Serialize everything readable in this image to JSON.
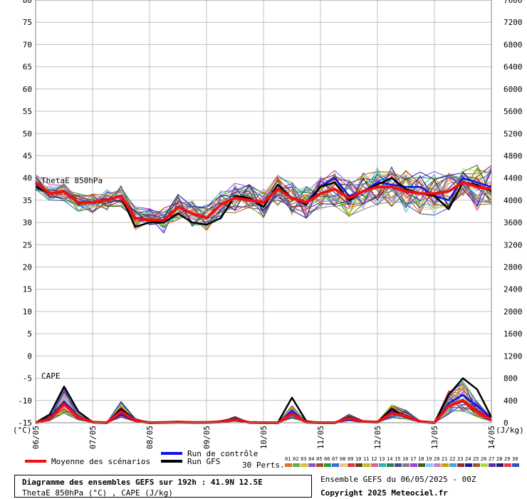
{
  "header": {
    "unit_left": "(°C)",
    "unit_right": "(J/kg)"
  },
  "panels": {
    "thetae_label": "ThetaE 850hPa",
    "cape_label": "CAPE"
  },
  "legend": {
    "mean_label": "Moyenne des scénarios",
    "control_label": "Run de contrôle",
    "gfs_label": "Run GFS",
    "perts_label": "30 Perts.",
    "pert_numbers": [
      "01",
      "02",
      "03",
      "04",
      "05",
      "06",
      "07",
      "08",
      "09",
      "10",
      "11",
      "12",
      "13",
      "14",
      "15",
      "16",
      "17",
      "18",
      "19",
      "20",
      "21",
      "22",
      "23",
      "24",
      "25",
      "26",
      "27",
      "28",
      "29",
      "30"
    ],
    "pert_colors": [
      "#e0702a",
      "#60b040",
      "#d8c030",
      "#8a50c8",
      "#a04a20",
      "#2a9a40",
      "#3a6ae0",
      "#e8c890",
      "#e03838",
      "#5a4020",
      "#c0c020",
      "#e06090",
      "#28b4b4",
      "#208848",
      "#4a4a8a",
      "#808080",
      "#a040e0",
      "#406020",
      "#80c8ff",
      "#d080c0",
      "#c8a000",
      "#4aa0e0",
      "#9a2828",
      "#1a1a9a",
      "#9a5a2a",
      "#a0e040",
      "#6030a0",
      "#20207a",
      "#e04040",
      "#3050c0"
    ]
  },
  "info": {
    "title": "Diagramme des ensembles GEFS sur 192h : 41.9N 12.5E",
    "subtitle": "ThetaE 850hPa (°C) , CAPE (J/kg)",
    "run": "Ensemble GEFS du 06/05/2025 - 00Z",
    "copyright": "Copyright 2025 Meteociel.fr"
  },
  "chart_data": {
    "type": "line",
    "xlabel": "",
    "ylabel": "(°C)",
    "y2label": "(J/kg)",
    "x_ticks": [
      "06/05",
      "07/05",
      "08/05",
      "09/05",
      "10/05",
      "11/05",
      "12/05",
      "13/05",
      "14/05"
    ],
    "x_range_hours": [
      0,
      192
    ],
    "y_left": {
      "ticks": [
        80,
        75,
        70,
        65,
        60,
        55,
        50,
        45,
        40,
        35,
        30,
        25,
        20,
        15,
        10,
        5,
        0,
        -5,
        -10,
        -15
      ],
      "range": [
        -15,
        80
      ]
    },
    "y_right": {
      "ticks": [
        7600,
        7200,
        6800,
        6400,
        6000,
        5600,
        5200,
        4800,
        4400,
        4000,
        3600,
        3200,
        2800,
        2400,
        2000,
        1600,
        1200,
        800,
        400,
        0
      ],
      "range": [
        0,
        7600
      ]
    },
    "grid": true,
    "thetae_850hPa_degC": {
      "x_hours": [
        0,
        6,
        12,
        18,
        24,
        30,
        36,
        42,
        48,
        54,
        60,
        66,
        72,
        78,
        84,
        90,
        96,
        102,
        108,
        114,
        120,
        126,
        132,
        138,
        144,
        150,
        156,
        162,
        168,
        174,
        180,
        186,
        192
      ],
      "mean": [
        39,
        36.5,
        37,
        34.5,
        34.5,
        35,
        36,
        31,
        30.5,
        30.5,
        33.5,
        32,
        31,
        34,
        35.5,
        35,
        34.5,
        37.5,
        35.5,
        34.5,
        36.5,
        37.5,
        35.5,
        37,
        38,
        38,
        37,
        36.5,
        36.5,
        37,
        39,
        38,
        37.5
      ],
      "control": [
        38.5,
        36.5,
        37,
        34.5,
        34.5,
        35,
        36,
        31,
        30.5,
        30.5,
        33.5,
        32,
        31,
        34,
        35.5,
        35,
        34.5,
        37.5,
        35.5,
        34.5,
        38,
        40,
        36,
        37,
        39,
        38.5,
        38,
        38,
        36,
        35,
        40,
        39,
        38
      ],
      "gfs": [
        38,
        36.5,
        37,
        34.5,
        34.5,
        35,
        36,
        29,
        30,
        30,
        32,
        30,
        29.5,
        31,
        36,
        35.5,
        33.5,
        38.5,
        35.5,
        34,
        38,
        39,
        35,
        37,
        38.5,
        40,
        37.5,
        36.5,
        36,
        33,
        39,
        38.5,
        37
      ]
    },
    "cape_J_per_kg": {
      "x_hours": [
        0,
        6,
        12,
        18,
        24,
        30,
        36,
        42,
        48,
        54,
        60,
        66,
        72,
        78,
        84,
        90,
        96,
        102,
        108,
        114,
        120,
        126,
        132,
        138,
        144,
        150,
        156,
        162,
        168,
        174,
        180,
        186,
        192
      ],
      "mean": [
        0,
        70,
        330,
        100,
        10,
        0,
        200,
        40,
        0,
        5,
        10,
        5,
        5,
        15,
        60,
        5,
        0,
        0,
        160,
        10,
        0,
        0,
        80,
        20,
        10,
        170,
        120,
        20,
        0,
        300,
        400,
        200,
        50
      ],
      "control": [
        0,
        100,
        380,
        120,
        10,
        0,
        150,
        30,
        0,
        5,
        10,
        5,
        0,
        10,
        40,
        0,
        0,
        0,
        200,
        10,
        0,
        0,
        50,
        10,
        20,
        200,
        100,
        20,
        0,
        350,
        500,
        300,
        80
      ],
      "gfs": [
        0,
        150,
        650,
        200,
        10,
        0,
        250,
        50,
        0,
        10,
        20,
        10,
        5,
        30,
        80,
        10,
        0,
        0,
        450,
        30,
        0,
        0,
        100,
        30,
        10,
        250,
        100,
        20,
        0,
        500,
        800,
        600,
        100
      ]
    }
  }
}
